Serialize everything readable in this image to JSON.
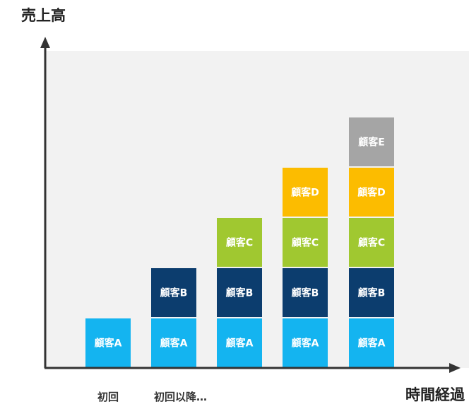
{
  "chart_data": {
    "type": "bar",
    "stacked": true,
    "ylabel": "売上高",
    "xlabel": "時間経過",
    "categories": [
      "初回",
      "初回以降…",
      "",
      "",
      ""
    ],
    "series": [
      {
        "name": "顧客A",
        "color": "#14b4f0",
        "values": [
          1,
          1,
          1,
          1,
          1
        ]
      },
      {
        "name": "顧客B",
        "color": "#0c3d6e",
        "values": [
          0,
          1,
          1,
          1,
          1
        ]
      },
      {
        "name": "顧客C",
        "color": "#a0c830",
        "values": [
          0,
          0,
          1,
          1,
          1
        ]
      },
      {
        "name": "顧客D",
        "color": "#fcbc00",
        "values": [
          0,
          0,
          0,
          1,
          1
        ]
      },
      {
        "name": "顧客E",
        "color": "#a5a5a5",
        "values": [
          0,
          0,
          0,
          0,
          1
        ]
      }
    ],
    "ylim": [
      0,
      6
    ],
    "grid": false,
    "legend": "none",
    "background": "#f2f2f2",
    "axis_color": "#333333"
  }
}
